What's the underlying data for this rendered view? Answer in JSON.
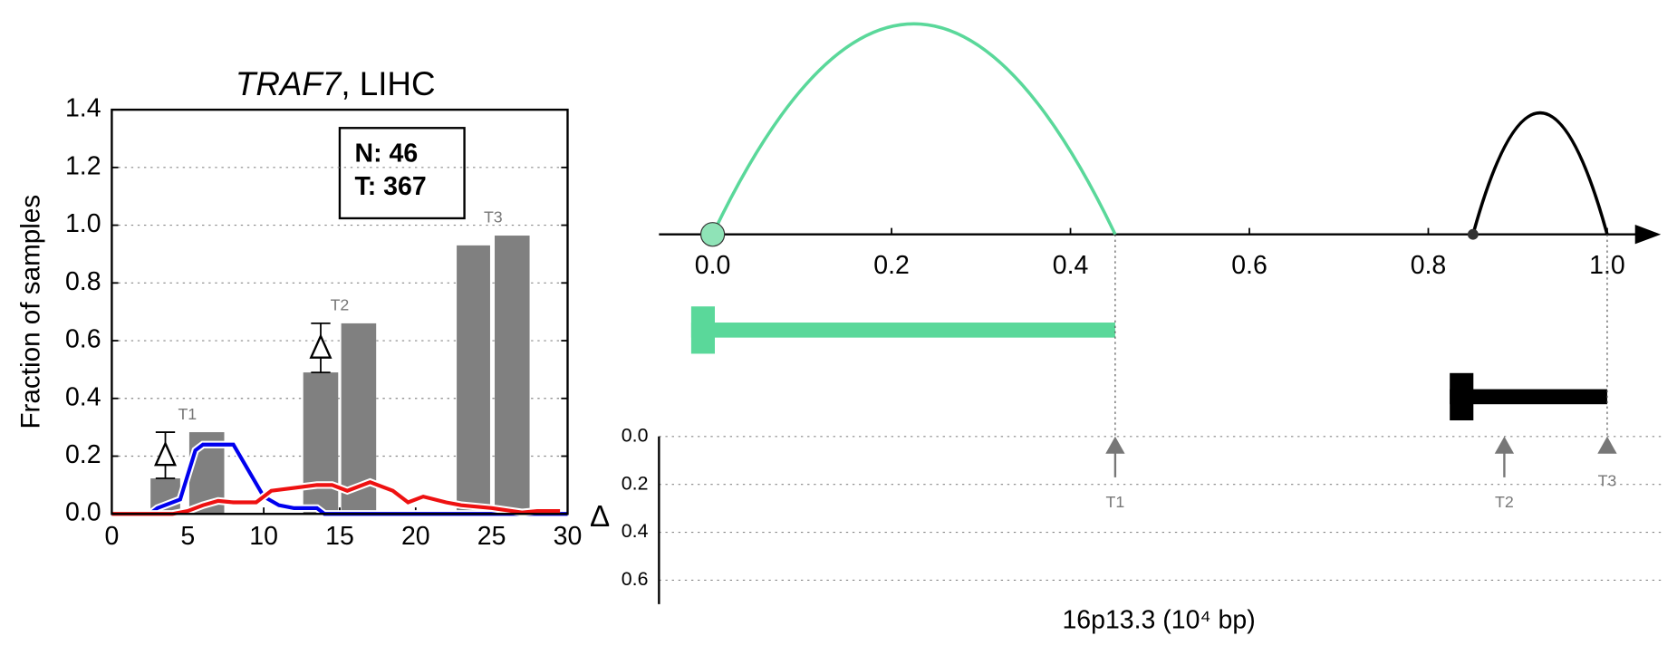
{
  "chart_data": [
    {
      "type": "bar-line",
      "title": [
        "TRAF7",
        ", LIHC"
      ],
      "ylabel": "Fraction of samples",
      "xlim": [
        0,
        30
      ],
      "xticks": [
        0,
        5,
        10,
        15,
        20,
        25,
        30
      ],
      "ylim": [
        0,
        1.4
      ],
      "yticks": [
        {
          "value": 0,
          "label": "0.0"
        },
        {
          "value": 0.2,
          "label": "0.2"
        },
        {
          "value": 0.4,
          "label": "0.4"
        },
        {
          "value": 0.6,
          "label": "0.6"
        },
        {
          "value": 0.8,
          "label": "0.8"
        },
        {
          "value": 1.0,
          "label": "1.0"
        },
        {
          "value": 1.2,
          "label": "1.2"
        },
        {
          "value": 1.4,
          "label": "1.4"
        }
      ],
      "grid": true,
      "annotations": [
        "N: 46",
        "T: 367"
      ],
      "bar_color": "#808080",
      "bar_groups": [
        {
          "label": "T1",
          "left": [
            2.55,
            5.1
          ],
          "right": [
            4.5,
            7.4
          ],
          "values": [
            0.123,
            0.283
          ],
          "delta": true
        },
        {
          "label": "T2",
          "left": [
            12.6,
            15.1
          ],
          "right": [
            14.9,
            17.4
          ],
          "values": [
            0.49,
            0.66
          ],
          "delta": true
        },
        {
          "label": "T3",
          "left": [
            22.7,
            25.2
          ],
          "right": [
            24.9,
            27.5
          ],
          "values": [
            0.93,
            0.964
          ],
          "delta": false
        }
      ],
      "series": [
        {
          "color": "#0000ee",
          "x": [
            0,
            2.5,
            3,
            4.5,
            5.5,
            6,
            8,
            9,
            10,
            11,
            12,
            13.5,
            14,
            30
          ],
          "values": [
            0,
            0,
            0.02,
            0.05,
            0.22,
            0.24,
            0.24,
            0.15,
            0.06,
            0.03,
            0.02,
            0.02,
            0,
            0
          ]
        },
        {
          "color": "#ee1111",
          "x": [
            0,
            4,
            5,
            6,
            7,
            8,
            9.5,
            10.5,
            12,
            13.5,
            14.5,
            15.5,
            17,
            18.5,
            19.5,
            20.5,
            22,
            23,
            25,
            27,
            28,
            29.5
          ],
          "values": [
            0,
            0,
            0.01,
            0.03,
            0.045,
            0.04,
            0.04,
            0.08,
            0.09,
            0.1,
            0.1,
            0.08,
            0.11,
            0.08,
            0.04,
            0.06,
            0.04,
            0.03,
            0.02,
            0.005,
            0.01,
            0.01
          ]
        }
      ]
    },
    {
      "type": "genome-arcs",
      "xlabel": "16p13.3 (10⁴ bp)",
      "ylabel": "Δ",
      "xlim": [
        -0.06,
        1.06
      ],
      "xticks": [
        {
          "value": 0,
          "label": "0.0"
        },
        {
          "value": 0.2,
          "label": "0.2"
        },
        {
          "value": 0.4,
          "label": "0.4"
        },
        {
          "value": 0.6,
          "label": "0.6"
        },
        {
          "value": 0.8,
          "label": "0.8"
        },
        {
          "value": 1.0,
          "label": "1.0"
        }
      ],
      "ylim": [
        0,
        0.7
      ],
      "yticks": [
        {
          "value": 0,
          "label": "0.0"
        },
        {
          "value": 0.2,
          "label": "0.2"
        },
        {
          "value": 0.4,
          "label": "0.4"
        },
        {
          "value": 0.6,
          "label": "0.6"
        }
      ],
      "arcs": [
        {
          "start": 0,
          "end": 0.45,
          "color": "#5ad89a"
        },
        {
          "start": 0.85,
          "end": 1.0,
          "color": "#000000"
        }
      ],
      "segments": [
        {
          "start": -0.024,
          "end": 0.45,
          "color": "#5ad89a"
        },
        {
          "start": 0.824,
          "end": 1.0,
          "color": "#000000"
        }
      ],
      "markers": [
        {
          "label": "T1",
          "x": 0.45
        },
        {
          "label": "T2",
          "x": 0.885
        },
        {
          "label": "T3",
          "x": 1.0
        }
      ]
    }
  ]
}
